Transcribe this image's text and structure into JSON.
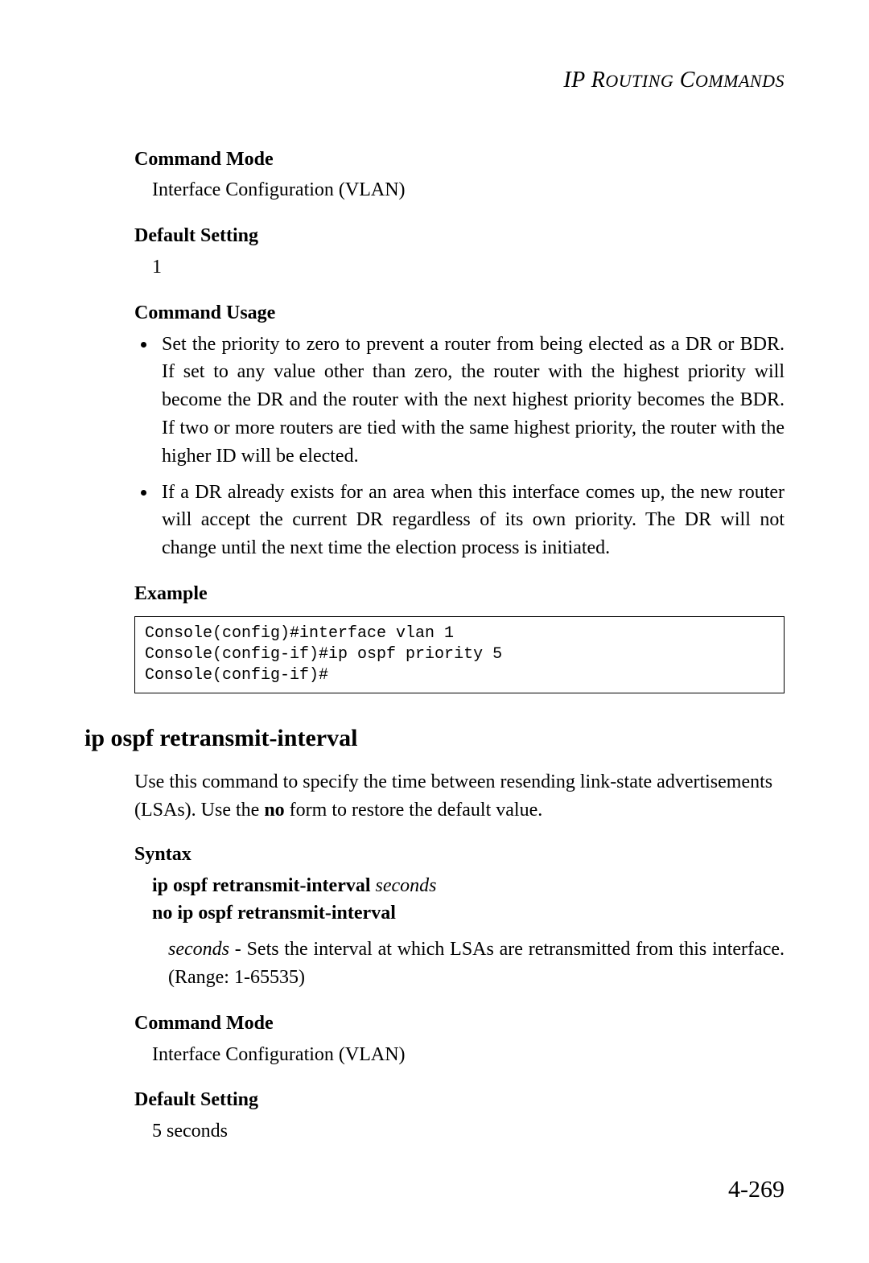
{
  "page": {
    "running_head_prefix": "IP R",
    "running_head_small1": "OUTING",
    "running_head_mid": " C",
    "running_head_small2": "OMMANDS",
    "number": "4-269"
  },
  "upper": {
    "command_mode_label": "Command Mode",
    "command_mode_value": "Interface Configuration (VLAN)",
    "default_setting_label": "Default Setting",
    "default_setting_value": "1",
    "command_usage_label": "Command Usage",
    "bullet1": "Set the priority to zero to prevent a router from being elected as a DR or BDR. If set to any value other than zero, the router with the highest priority will become the DR and the router with the next highest priority becomes the BDR. If two or more routers are tied with the same highest priority, the router with the higher ID will be elected.",
    "bullet2": "If a DR already exists for an area when this interface comes up, the new router will accept the current DR regardless of its own priority. The DR will not change until the next time the election process is initiated.",
    "example_label": "Example",
    "code": "Console(config)#interface vlan 1\nConsole(config-if)#ip ospf priority 5\nConsole(config-if)#"
  },
  "section": {
    "title": "ip ospf retransmit-interval",
    "intro_a": "Use this command to specify the time between resending link-state advertisements (LSAs). Use the ",
    "intro_no": "no",
    "intro_b": " form to restore the default value.",
    "syntax_label": "Syntax",
    "syntax_line1_bold": "ip ospf retransmit-interval ",
    "syntax_line1_ital": "seconds",
    "syntax_line2": "no ip ospf retransmit-interval",
    "param_name": "seconds",
    "param_desc": " - Sets the interval at which LSAs are retransmitted from this interface. (Range: 1-65535)",
    "command_mode_label": "Command Mode",
    "command_mode_value": "Interface Configuration (VLAN)",
    "default_setting_label": "Default Setting",
    "default_setting_value": "5 seconds"
  },
  "style": {
    "body_font_size_pt": 18,
    "heading_font_size_pt": 22,
    "code_font_size_pt": 15,
    "text_color": "#000000",
    "background_color": "#ffffff",
    "codebox_border_color": "#000000"
  }
}
